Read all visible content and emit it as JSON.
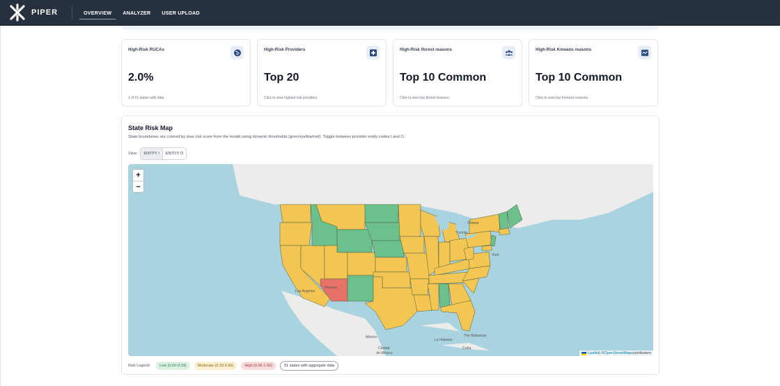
{
  "brand": {
    "name": "PIPER"
  },
  "nav": {
    "overview": "OVERVIEW",
    "analyzer": "ANALYZER",
    "upload": "USER UPLOAD"
  },
  "cards": [
    {
      "title": "High-Risk RUCAs",
      "value": "2.0%",
      "sub": "1 of 51 states with data",
      "icon": "globe-icon"
    },
    {
      "title": "High-Risk Providers",
      "value": "Top 20",
      "sub": "Click to view highest risk providers",
      "icon": "medical-plus-icon"
    },
    {
      "title": "High-Risk Iforest reasons",
      "value": "Top 10 Common",
      "sub": "Click to view top Iforest reasons",
      "icon": "users-icon"
    },
    {
      "title": "High-Risk Kmeans reasons",
      "value": "Top 10 Common",
      "sub": "Click to view top Kmeans reasons",
      "icon": "chart-wave-icon"
    }
  ],
  "map_section": {
    "title": "State Risk Map",
    "description": "State boundaries are colored by max risk score from the model using dynamic thresholds (green/yellow/red). Toggle between provider entity codes I and O.",
    "view_label": "View:",
    "entity_i": "ENTITY I",
    "entity_o": "ENTITY O",
    "zoom_in": "+",
    "zoom_out": "−",
    "attribution": {
      "leaflet": "Leaflet",
      "sep": " | © ",
      "osm": "OpenStreetMap",
      "contrib": " contributors"
    },
    "labels": {
      "ottawa": "Ottawa",
      "toronto": "Toronto",
      "york": "York",
      "phoenix": "Phoenix",
      "los_angeles": "Los Angeles",
      "mexico": "México",
      "ciudad": "Ciudad",
      "de_mexico": "de México",
      "la_habana": "La Habana",
      "the_bahamas": "The Bahamas",
      "cuba": "Cuba"
    }
  },
  "legend": {
    "title": "Risk Legend:",
    "low": "Low (0.00-0.33)",
    "moderate": "Moderate (0.33-0.66)",
    "high": "High (0.66-1.00)",
    "count": "51 states with aggregate data"
  },
  "colors": {
    "low": "#6cc08b",
    "moderate": "#f3c653",
    "high": "#e6736a",
    "water": "#a9d3df",
    "land": "#ececea",
    "nav_bg": "#27303f"
  }
}
